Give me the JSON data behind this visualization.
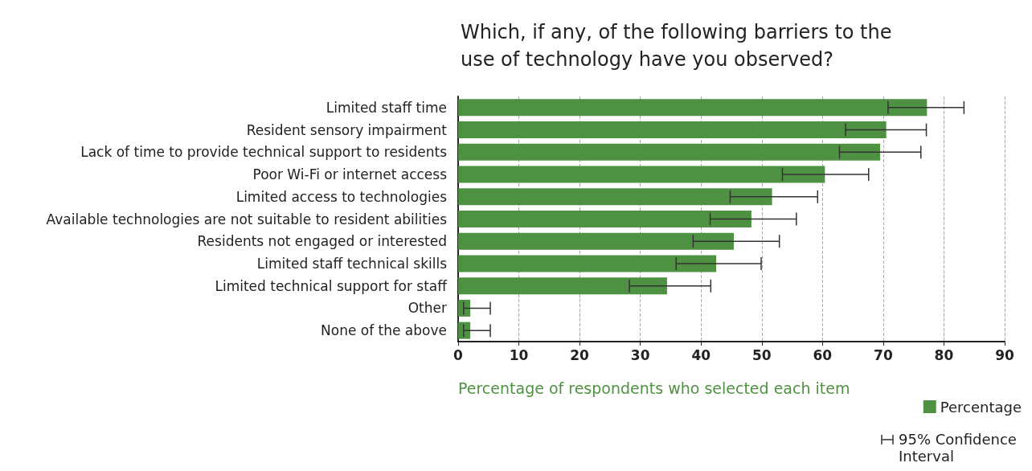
{
  "chart_data": {
    "type": "bar",
    "orientation": "horizontal",
    "title": "Which, if any, of the following barriers to the\nuse of technology have you observed?",
    "xlabel": "Percentage of respondents who selected each item",
    "categories": [
      "Limited staff time",
      "Resident sensory impairment",
      "Lack of time to provide technical support to residents",
      "Poor Wi-Fi or internet access",
      "Limited access to technologies",
      "Available technologies are not suitable to resident abilities",
      "Residents not engaged or interested",
      "Limited staff technical skills",
      "Limited technical support for staff",
      "Other",
      "None of the above"
    ],
    "series": [
      {
        "name": "Percentage",
        "color": "#4f9142",
        "values": [
          77.2,
          70.5,
          69.5,
          60.4,
          51.7,
          48.3,
          45.4,
          42.5,
          34.4,
          2.0,
          2.0
        ],
        "errors": [
          [
            70.8,
            83.3
          ],
          [
            63.8,
            77.1
          ],
          [
            62.8,
            76.2
          ],
          [
            53.4,
            67.6
          ],
          [
            44.8,
            59.2
          ],
          [
            41.5,
            55.7
          ],
          [
            38.7,
            52.9
          ],
          [
            35.9,
            49.9
          ],
          [
            28.2,
            41.6
          ],
          [
            0.9,
            5.3
          ],
          [
            0.9,
            5.3
          ]
        ]
      }
    ],
    "annotations": [
      "95% Confidence Interval"
    ],
    "xlim": [
      0,
      90
    ],
    "xticks": [
      0,
      10,
      20,
      30,
      40,
      50,
      60,
      70,
      80,
      90
    ],
    "grid": "x",
    "legend": "bottom right"
  }
}
